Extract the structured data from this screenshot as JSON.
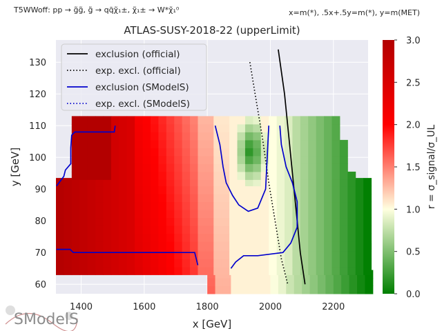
{
  "header": {
    "topology": "T5WWoff: pp → g̃g̃, g̃ → qq̄χ̃₁±, χ̃₁± → W*χ̃₁⁰",
    "mass_mapping": "x=m(*), .5x+.5y=m(*), y=m(MET)"
  },
  "logo": {
    "text": "SModelS"
  },
  "chart_data": {
    "type": "heatmap",
    "title": "ATLAS-SUSY-2018-22 (upperLimit)",
    "xlabel": "x [GeV]",
    "ylabel": "y [GeV]",
    "xlim": [
      1320,
      2310
    ],
    "ylim": [
      57,
      137
    ],
    "x_ticks": [
      1400,
      1600,
      1800,
      2000,
      2200
    ],
    "y_ticks": [
      60,
      70,
      80,
      90,
      100,
      110,
      120,
      130
    ],
    "grid": true,
    "colorbar": {
      "label": "r = σ_signal/σ_UL",
      "range": [
        0.0,
        3.0
      ],
      "ticks": [
        "0.0",
        "0.5",
        "1.0",
        "1.5",
        "2.0",
        "2.5",
        "3.0"
      ],
      "colormap": [
        "#007f00",
        "#ffffe0",
        "#ff0000",
        "#b30000"
      ]
    },
    "legend": {
      "placement": "top-left",
      "entries": [
        {
          "label": "exclusion (official)",
          "color": "#000000",
          "style": "solid"
        },
        {
          "label": "exp. excl. (official)",
          "color": "#000000",
          "style": "dotted"
        },
        {
          "label": "exclusion (SModelS)",
          "color": "#0000cc",
          "style": "solid"
        },
        {
          "label": "exp. excl. (SModelS)",
          "color": "#0000cc",
          "style": "dotted"
        }
      ]
    },
    "region_rows": [
      {
        "y": [
          57,
          63
        ],
        "x": [
          1800,
          2310
        ]
      },
      {
        "y": [
          63,
          71
        ],
        "x": [
          1320,
          2310
        ]
      },
      {
        "y": [
          71,
          93
        ],
        "x": [
          1320,
          2300
        ]
      },
      {
        "y": [
          93,
          103
        ],
        "x": [
          1370,
          2260
        ]
      },
      {
        "y": [
          103,
          111
        ],
        "x": [
          1370,
          2230
        ]
      }
    ],
    "series": [
      {
        "name": "exclusion (official)",
        "points": [
          [
            2025,
            134
          ],
          [
            2045,
            120
          ],
          [
            2060,
            105
          ],
          [
            2075,
            90
          ],
          [
            2085,
            80
          ],
          [
            2095,
            70
          ],
          [
            2110,
            60
          ]
        ]
      },
      {
        "name": "exp. excl. (official)",
        "points": [
          [
            1935,
            130
          ],
          [
            1955,
            118
          ],
          [
            1975,
            106
          ],
          [
            1995,
            92
          ],
          [
            2015,
            80
          ],
          [
            2035,
            68
          ],
          [
            2055,
            60
          ]
        ]
      },
      {
        "name": "exclusion (SModelS)",
        "points": [
          [
            1322,
            91
          ],
          [
            1345,
            94
          ],
          [
            1350,
            96
          ],
          [
            1367,
            98
          ],
          [
            1367,
            103
          ],
          [
            1370,
            107
          ],
          [
            1380,
            108
          ],
          [
            1505,
            108
          ],
          [
            1508,
            110
          ]
        ]
      },
      {
        "name": "exclusion (SModelS)",
        "points": [
          [
            1322,
            71
          ],
          [
            1365,
            71
          ],
          [
            1375,
            70
          ],
          [
            1760,
            70
          ],
          [
            1770,
            66
          ]
        ]
      },
      {
        "name": "exclusion (SModelS)",
        "points": [
          [
            1825,
            110
          ],
          [
            1840,
            104
          ],
          [
            1850,
            97
          ],
          [
            1860,
            92
          ],
          [
            1880,
            88
          ],
          [
            1900,
            85
          ],
          [
            1930,
            83
          ],
          [
            1960,
            84
          ],
          [
            1985,
            90
          ],
          [
            1990,
            100
          ],
          [
            1995,
            110
          ]
        ]
      },
      {
        "name": "exclusion (SModelS)",
        "points": [
          [
            2030,
            110
          ],
          [
            2035,
            104
          ],
          [
            2050,
            97
          ],
          [
            2070,
            92
          ],
          [
            2085,
            86
          ],
          [
            2085,
            78
          ],
          [
            2065,
            73
          ],
          [
            2040,
            70
          ],
          [
            1960,
            69
          ],
          [
            1915,
            69
          ],
          [
            1890,
            67
          ],
          [
            1875,
            65
          ]
        ]
      }
    ]
  }
}
